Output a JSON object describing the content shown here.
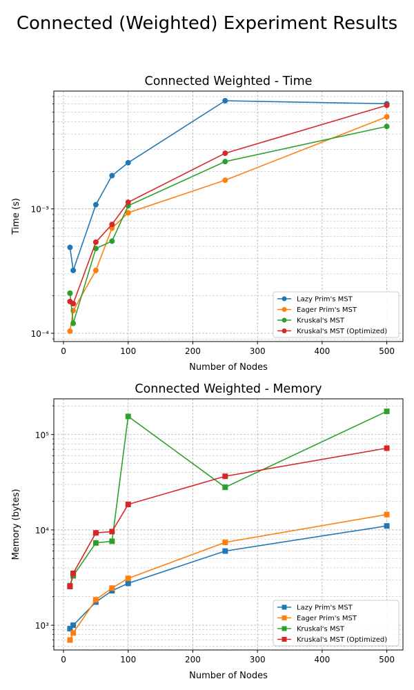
{
  "figure": {
    "title": "Connected (Weighted) Experiment Results"
  },
  "chart_data": [
    {
      "type": "line",
      "title": "Connected Weighted - Time",
      "xlabel": "Number of Nodes",
      "ylabel": "Time (s)",
      "xscale": "linear",
      "yscale": "log",
      "xlim": [
        -15,
        525
      ],
      "ylim": [
        8.575e-05,
        0.00885
      ],
      "xticks": [
        0,
        100,
        200,
        300,
        400,
        500
      ],
      "xtick_labels": [
        "0",
        "100",
        "200",
        "300",
        "400",
        "500"
      ],
      "yticks": [
        0.0001,
        0.001
      ],
      "ytick_labels": [
        "10⁻⁴",
        "10⁻³"
      ],
      "grid": true,
      "legend_position": "lower-right",
      "marker": "circle",
      "x": [
        10,
        15,
        50,
        75,
        100,
        250,
        500
      ],
      "series": [
        {
          "name": "Lazy Prim's MST",
          "color": "#1f77b4",
          "values": [
            0.00049,
            0.00032,
            0.00108,
            0.00185,
            0.00235,
            0.0074,
            0.007
          ]
        },
        {
          "name": "Eager Prim's MST",
          "color": "#ff7f0e",
          "values": [
            0.000104,
            0.000152,
            0.00032,
            0.0007,
            0.00093,
            0.0017,
            0.0055
          ]
        },
        {
          "name": "Kruskal's MST",
          "color": "#2ca02c",
          "values": [
            0.00021,
            0.00012,
            0.00048,
            0.00055,
            0.00106,
            0.0024,
            0.0046
          ]
        },
        {
          "name": "Kruskal's MST (Optimized)",
          "color": "#d62728",
          "values": [
            0.00018,
            0.000173,
            0.00054,
            0.00075,
            0.00113,
            0.0028,
            0.0068
          ]
        }
      ]
    },
    {
      "type": "line",
      "title": "Connected Weighted - Memory",
      "xlabel": "Number of Nodes",
      "ylabel": "Memory (bytes)",
      "xscale": "linear",
      "yscale": "log",
      "xlim": [
        -15,
        525
      ],
      "ylim": [
        550,
        237000
      ],
      "xticks": [
        0,
        100,
        200,
        300,
        400,
        500
      ],
      "xtick_labels": [
        "0",
        "100",
        "200",
        "300",
        "400",
        "500"
      ],
      "yticks": [
        1000,
        10000,
        100000
      ],
      "ytick_labels": [
        "10³",
        "10⁴",
        "10⁵"
      ],
      "grid": true,
      "legend_position": "lower-right",
      "marker": "square",
      "x": [
        10,
        15,
        50,
        75,
        100,
        250,
        500
      ],
      "series": [
        {
          "name": "Lazy Prim's MST",
          "color": "#1f77b4",
          "values": [
            920,
            1000,
            1750,
            2300,
            2750,
            6000,
            11000
          ]
        },
        {
          "name": "Eager Prim's MST",
          "color": "#ff7f0e",
          "values": [
            700,
            830,
            1850,
            2450,
            3100,
            7400,
            14500
          ]
        },
        {
          "name": "Kruskal's MST",
          "color": "#2ca02c",
          "values": [
            2600,
            3300,
            7300,
            7600,
            155000,
            28000,
            175000
          ]
        },
        {
          "name": "Kruskal's MST (Optimized)",
          "color": "#d62728",
          "values": [
            2550,
            3500,
            9300,
            9600,
            18500,
            36500,
            72000
          ]
        }
      ]
    }
  ]
}
